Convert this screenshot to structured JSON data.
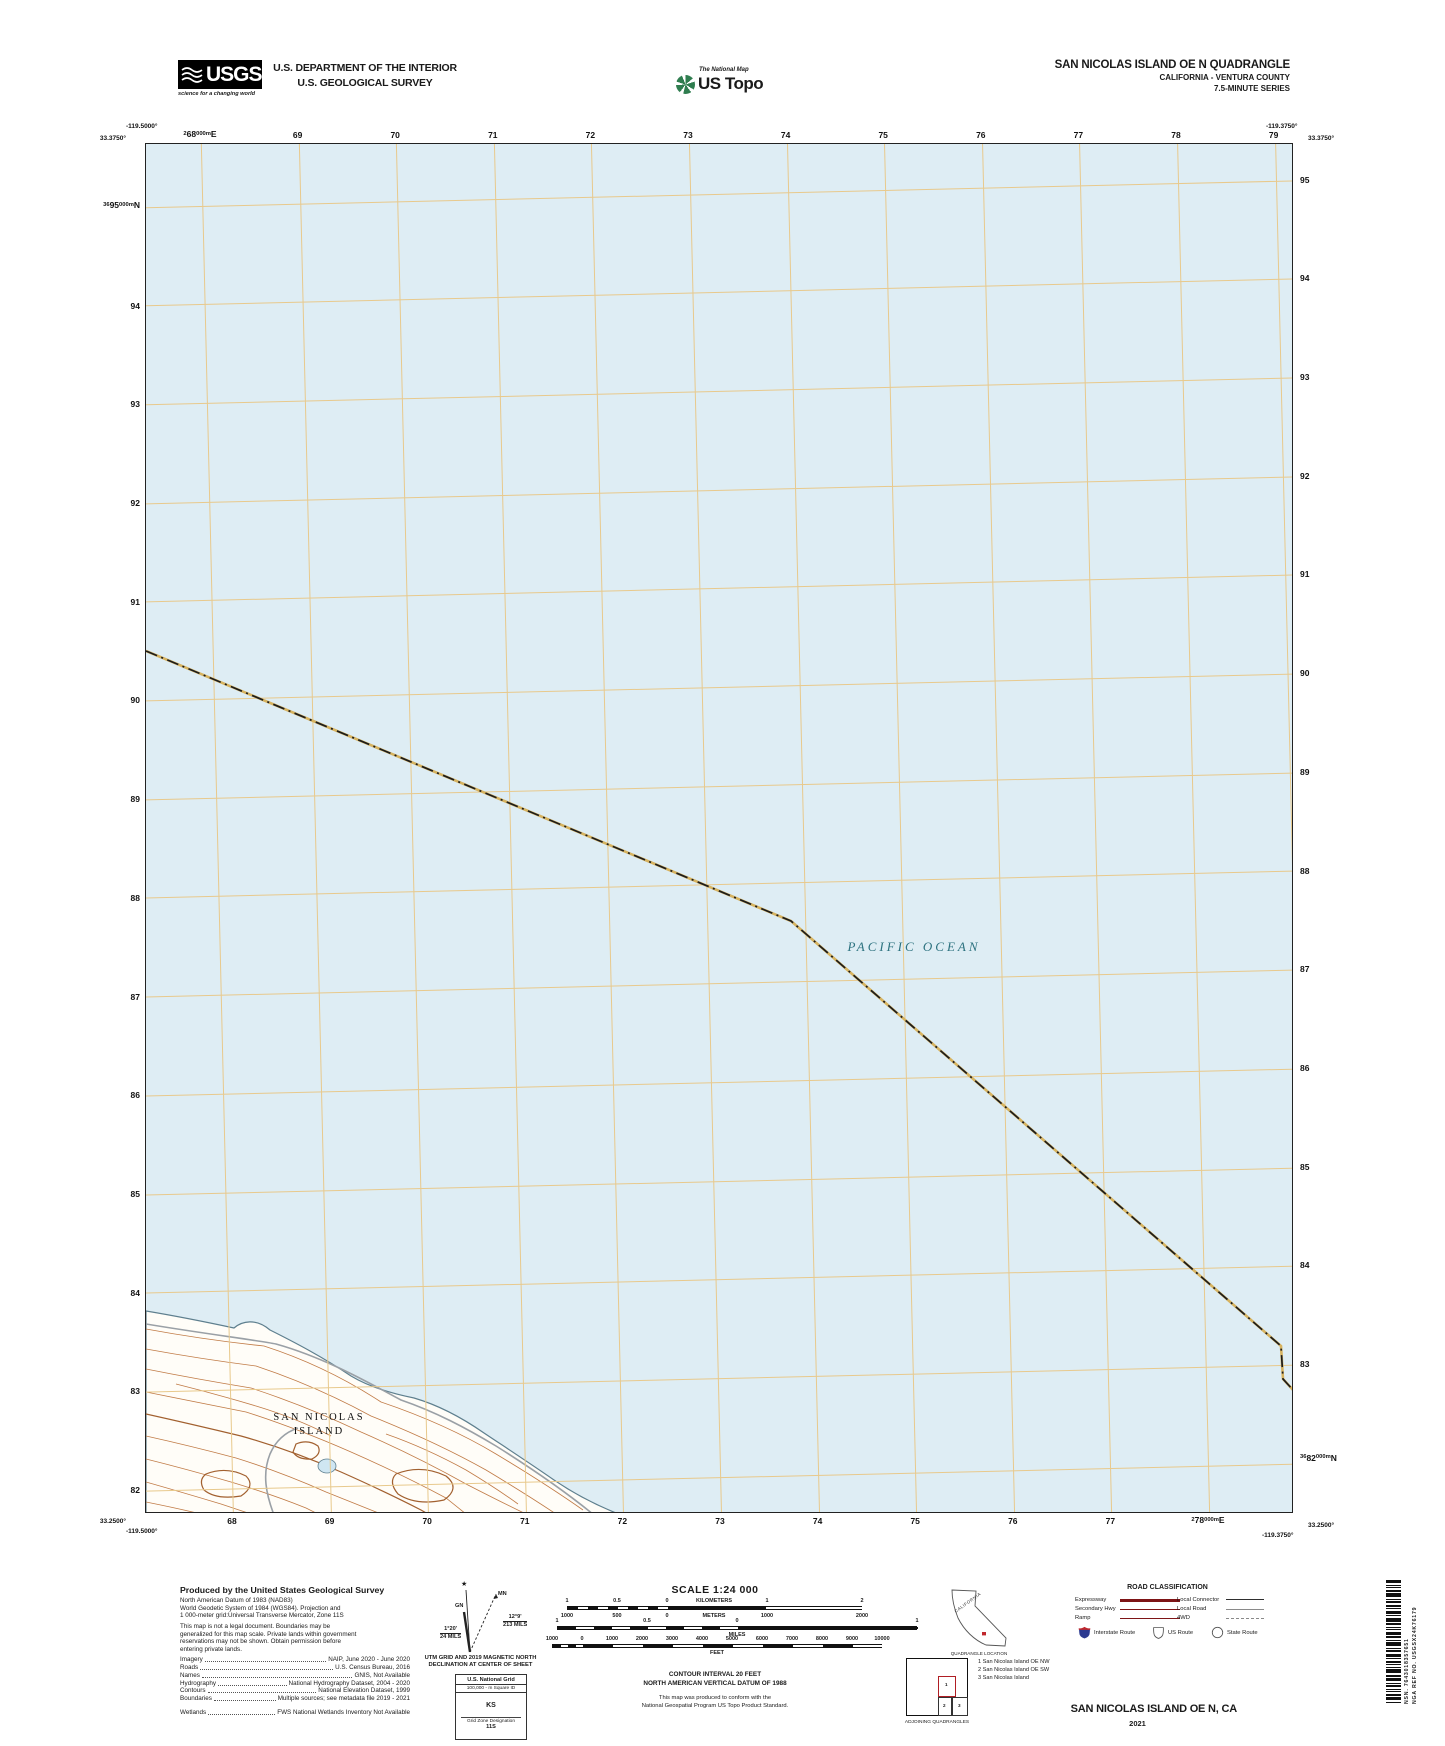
{
  "header": {
    "usgs": {
      "logo_text": "USGS",
      "tagline": "science for a changing world"
    },
    "dept_line1": "U.S. DEPARTMENT OF THE INTERIOR",
    "dept_line2": "U.S. GEOLOGICAL SURVEY",
    "natmap_small": "The National Map",
    "natmap_large": "US Topo",
    "quad_title": "SAN NICOLAS ISLAND OE N QUADRANGLE",
    "quad_subtitle": "CALIFORNIA - VENTURA COUNTY",
    "quad_series": "7.5-MINUTE SERIES"
  },
  "map": {
    "ocean_label": "PACIFIC OCEAN",
    "island_label_line1": "SAN NICOLAS",
    "island_label_line2": "ISLAND",
    "corner_coords": {
      "top_left_lon": "-119.5000°",
      "top_left_lat": "33.3750°",
      "top_right_lon": "-119.3750°",
      "top_right_lat": "33.3750°",
      "bottom_left_lat": "33.2500°",
      "bottom_left_lon": "-119.5000°",
      "bottom_right_lat": "33.2500°",
      "bottom_right_lon": "-119.3750°"
    },
    "utm_labels": {
      "top_first": {
        "pre": "2",
        "big": "68",
        "post": "000m",
        "dir": "E"
      },
      "bottom_last": {
        "pre": "2",
        "big": "78",
        "post": "000m",
        "dir": "E"
      },
      "left_first": {
        "pre": "36",
        "big": "95",
        "post": "000m",
        "dir": "N"
      },
      "right_last": {
        "pre": "36",
        "big": "82",
        "post": "000m",
        "dir": "N"
      }
    },
    "top_eastings": [
      "69",
      "70",
      "71",
      "72",
      "73",
      "74",
      "75",
      "76",
      "77",
      "78",
      "79"
    ],
    "bottom_eastings": [
      "68",
      "69",
      "70",
      "71",
      "72",
      "73",
      "74",
      "75",
      "76",
      "77"
    ],
    "left_northings": [
      "94",
      "93",
      "92",
      "91",
      "90",
      "89",
      "88",
      "87",
      "86",
      "85",
      "84",
      "83",
      "82"
    ],
    "right_northings": [
      "95",
      "94",
      "93",
      "92",
      "91",
      "90",
      "89",
      "88",
      "87",
      "86",
      "85",
      "84",
      "83"
    ]
  },
  "footer": {
    "produced": {
      "title": "Produced by the United States Geological Survey",
      "datum_lines": [
        "North American Datum of 1983 (NAD83)",
        "World Geodetic System of 1984 (WGS84).  Projection and",
        "1 000-meter grid:Universal Transverse Mercator, Zone 11S"
      ],
      "disclaimer_lines": [
        "This map is not a legal document. Boundaries may be",
        "generalized for this map scale. Private lands within government",
        "reservations may not be shown. Obtain permission before",
        "entering private lands."
      ],
      "sources": [
        {
          "label": "Imagery",
          "value": "NAIP, June 2020 - June 2020",
          "gap": false
        },
        {
          "label": "Roads",
          "value": "U.S. Census Bureau, 2016",
          "gap": false
        },
        {
          "label": "Names",
          "value": "GNIS, Not Available",
          "gap": false
        },
        {
          "label": "Hydrography",
          "value": "National Hydrography Dataset, 2004 - 2020",
          "gap": false
        },
        {
          "label": "Contours",
          "value": "National Elevation Dataset, 1999",
          "gap": false
        },
        {
          "label": "Boundaries",
          "value": "Multiple sources; see metadata file 2019 - 2021",
          "gap": false
        },
        {
          "label": "Wetlands",
          "value": "FWS National Wetlands Inventory Not Available",
          "gap": true
        }
      ]
    },
    "declination": {
      "star": "★",
      "gn_label": "GN",
      "mn_label": "MN",
      "gn_deg": "1°20'",
      "gn_mils": "24 MILS",
      "mn_deg": "12°9'",
      "mn_mils": "213 MILS",
      "caption1": "UTM GRID AND 2019 MAGNETIC NORTH",
      "caption2": "DECLINATION AT CENTER OF SHEET"
    },
    "usng": {
      "title": "U.S. National Grid",
      "subtitle": "100,000 - m Square ID",
      "square_id": "KS",
      "zone_label": "Grid Zone Designation",
      "zone": "11S"
    },
    "scale": {
      "title": "SCALE 1:24 000",
      "km_labels": [
        "1",
        "0.5",
        "0"
      ],
      "km_unit": "KILOMETERS",
      "km_right": [
        "1",
        "2"
      ],
      "m_labels": [
        "1000",
        "500",
        "0"
      ],
      "m_unit": "METERS",
      "m_right": [
        "1000",
        "2000"
      ],
      "mi_labels": [
        "1",
        "0.5",
        "0",
        "1"
      ],
      "mi_unit": "MILES",
      "ft_labels": [
        "1000",
        "0",
        "1000",
        "2000",
        "3000",
        "4000",
        "5000",
        "6000",
        "7000",
        "8000",
        "9000",
        "10000"
      ],
      "ft_unit": "FEET",
      "contour1": "CONTOUR INTERVAL 20 FEET",
      "contour2": "NORTH AMERICAN VERTICAL DATUM OF 1988",
      "conform1": "This map was produced to conform with the",
      "conform2": "National Geospatial Program US Topo Product Standard."
    },
    "location": {
      "state": "CALIFORNIA",
      "caption": "QUADRANGLE LOCATION"
    },
    "roads": {
      "title": "ROAD CLASSIFICATION",
      "left": [
        {
          "label": "Expressway"
        },
        {
          "label": "Secondary Hwy"
        },
        {
          "label": "Ramp"
        }
      ],
      "right": [
        {
          "label": "Local Connector"
        },
        {
          "label": "Local Road"
        },
        {
          "label": "4WD"
        }
      ],
      "shields": [
        {
          "label": "Interstate Route"
        },
        {
          "label": "US Route"
        },
        {
          "label": "State Route"
        }
      ]
    },
    "adjoining": {
      "caption": "ADJOINING QUADRANGLES",
      "cells": [
        "1",
        "2",
        "3"
      ],
      "list": [
        "1 San Nicolas Island OE NW",
        "2 San Nicolas Island OE SW",
        "3 San Nicolas Island"
      ]
    },
    "sheet_title": "SAN NICOLAS ISLAND OE N,  CA",
    "sheet_year": "2021",
    "barcode": {
      "nsn": "NSN. 7643018357651",
      "nga": "NGA REF NO. USGSX24K76179"
    }
  },
  "colors": {
    "ocean": "#deedf4",
    "grid": "#e8c98c",
    "contour": "#c07a45",
    "contour_index": "#a2602f",
    "boundary_underlay": "#d7b35f",
    "boundary_dash": "#1c1c1c",
    "legend_red": "#7e1416",
    "interstate_blue": "#2b3990",
    "interstate_red": "#c0272d",
    "ocean_text": "#2e7380"
  }
}
